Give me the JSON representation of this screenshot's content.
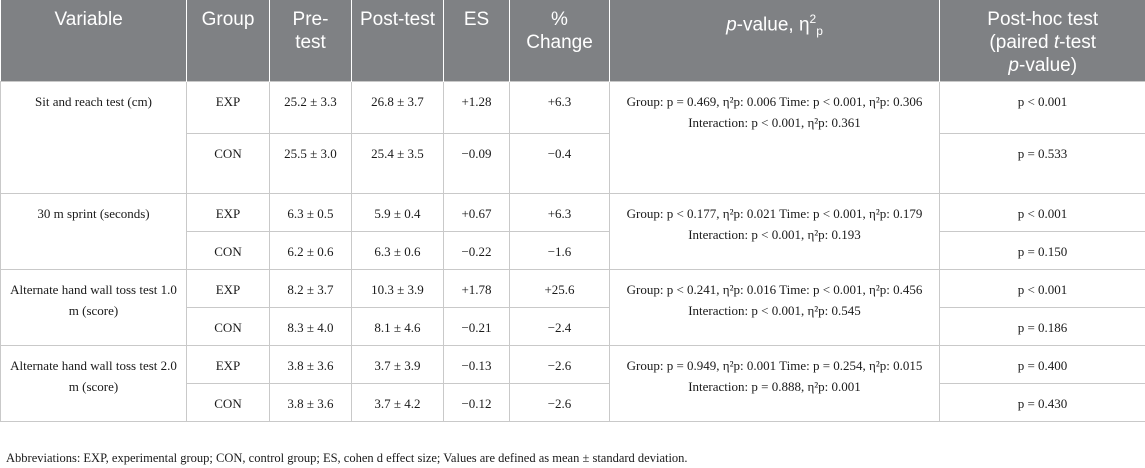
{
  "headers": {
    "variable": "Variable",
    "group": "Group",
    "pre": "Pre-test",
    "post": "Post-test",
    "es": "ES",
    "change": "% Change",
    "pvalue_p": "p",
    "pvalue_rest": "-value, η",
    "pvalue_sup": "2",
    "pvalue_sub": "p",
    "posthoc_line1": "Post-hoc test",
    "posthoc_line2a": "(paired ",
    "posthoc_t": "t",
    "posthoc_line2b": "-test",
    "posthoc_p": "p",
    "posthoc_line3": "-value)"
  },
  "rows": [
    {
      "variable": "Sit and reach test (cm)",
      "anova": "Group: p = 0.469, η²p: 0.006 Time: p < 0.001, η²p: 0.306 Interaction: p < 0.001, η²p: 0.361",
      "groups": [
        {
          "group": "EXP",
          "pre": "25.2 ± 3.3",
          "post": "26.8 ± 3.7",
          "es": "+1.28",
          "change": "+6.3",
          "posthoc": "p < 0.001"
        },
        {
          "group": "CON",
          "pre": "25.5 ± 3.0",
          "post": "25.4 ± 3.5",
          "es": "−0.09",
          "change": "−0.4",
          "posthoc": "p = 0.533"
        }
      ]
    },
    {
      "variable": "30 m sprint (seconds)",
      "anova": "Group: p < 0.177, η²p: 0.021 Time: p < 0.001, η²p: 0.179 Interaction: p < 0.001, η²p: 0.193",
      "groups": [
        {
          "group": "EXP",
          "pre": "6.3 ± 0.5",
          "post": "5.9 ± 0.4",
          "es": "+0.67",
          "change": "+6.3",
          "posthoc": "p < 0.001"
        },
        {
          "group": "CON",
          "pre": "6.2 ± 0.6",
          "post": "6.3 ± 0.6",
          "es": "−0.22",
          "change": "−1.6",
          "posthoc": "p = 0.150"
        }
      ]
    },
    {
      "variable": "Alternate hand wall toss test 1.0 m (score)",
      "anova": "Group: p < 0.241, η²p: 0.016 Time: p < 0.001, η²p: 0.456 Interaction: p < 0.001, η²p: 0.545",
      "groups": [
        {
          "group": "EXP",
          "pre": "8.2 ± 3.7",
          "post": "10.3 ± 3.9",
          "es": "+1.78",
          "change": "+25.6",
          "posthoc": "p < 0.001"
        },
        {
          "group": "CON",
          "pre": "8.3 ± 4.0",
          "post": "8.1 ± 4.6",
          "es": "−0.21",
          "change": "−2.4",
          "posthoc": "p = 0.186"
        }
      ]
    },
    {
      "variable": "Alternate hand wall toss test 2.0 m (score)",
      "anova": "Group: p = 0.949, η²p: 0.001 Time: p = 0.254, η²p: 0.015 Interaction: p = 0.888, η²p: 0.001",
      "groups": [
        {
          "group": "EXP",
          "pre": "3.8 ± 3.6",
          "post": "3.7 ± 3.9",
          "es": "−0.13",
          "change": "−2.6",
          "posthoc": "p = 0.400"
        },
        {
          "group": "CON",
          "pre": "3.8 ± 3.6",
          "post": "3.7 ± 4.2",
          "es": "−0.12",
          "change": "−2.6",
          "posthoc": "p = 0.430"
        }
      ]
    }
  ],
  "footnote": "Abbreviations: EXP, experimental group; CON, control group; ES, cohen d effect size; Values are defined as mean ± standard deviation."
}
